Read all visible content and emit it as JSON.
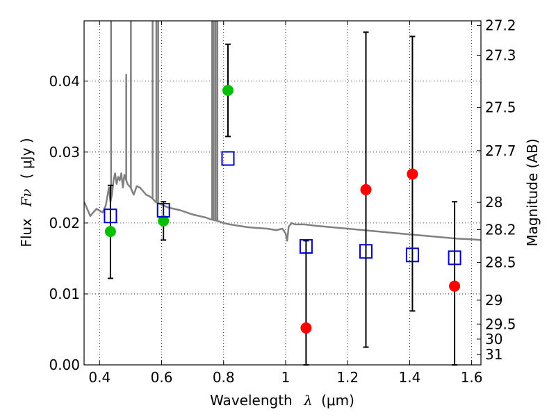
{
  "chart_data": {
    "type": "scatter",
    "title": "",
    "xlabel": "Wavelength",
    "xlabel_symbol": "λ",
    "xlabel_unit": "(μm)",
    "ylabel": "Flux",
    "ylabel_symbol": "Fν",
    "ylabel_unit": "( μJy )",
    "y2label": "Magnitude (AB)",
    "xlim": [
      0.35,
      1.63
    ],
    "ylim": [
      0.0,
      0.0485
    ],
    "grid": true,
    "x_ticks": [
      {
        "value": 0.4,
        "label": "0.4"
      },
      {
        "value": 0.6,
        "label": "0.6"
      },
      {
        "value": 0.8,
        "label": "0.8"
      },
      {
        "value": 1.0,
        "label": "1"
      },
      {
        "value": 1.2,
        "label": "1.2"
      },
      {
        "value": 1.4,
        "label": "1.4"
      },
      {
        "value": 1.6,
        "label": "1.6"
      }
    ],
    "y_ticks": [
      {
        "value": 0.0,
        "label": "0.00"
      },
      {
        "value": 0.01,
        "label": "0.01"
      },
      {
        "value": 0.02,
        "label": "0.02"
      },
      {
        "value": 0.03,
        "label": "0.03"
      },
      {
        "value": 0.04,
        "label": "0.04"
      }
    ],
    "y2_ticks": [
      {
        "value": 27.2,
        "label": "27.2"
      },
      {
        "value": 27.3,
        "label": "27.3"
      },
      {
        "value": 27.5,
        "label": "27.5"
      },
      {
        "value": 27.7,
        "label": "27.7"
      },
      {
        "value": 28.0,
        "label": "28"
      },
      {
        "value": 28.2,
        "label": "28.2"
      },
      {
        "value": 28.5,
        "label": "28.5"
      },
      {
        "value": 29.0,
        "label": "29"
      },
      {
        "value": 29.5,
        "label": "29.5"
      },
      {
        "value": 30.0,
        "label": "30"
      },
      {
        "value": 31.0,
        "label": "31"
      }
    ],
    "template_spectrum": {
      "color": "#808080",
      "x": [
        0.35,
        0.37,
        0.39,
        0.41,
        0.42,
        0.43,
        0.435,
        0.44,
        0.445,
        0.45,
        0.455,
        0.46,
        0.465,
        0.47,
        0.475,
        0.48,
        0.49,
        0.5,
        0.51,
        0.52,
        0.53,
        0.54,
        0.55,
        0.56,
        0.57,
        0.58,
        0.59,
        0.6,
        0.61,
        0.62,
        0.64,
        0.66,
        0.68,
        0.7,
        0.72,
        0.74,
        0.76,
        0.78,
        0.8,
        0.82,
        0.85,
        0.88,
        0.91,
        0.94,
        0.97,
        0.99,
        1.0,
        1.005,
        1.01,
        1.02,
        1.03,
        1.06,
        1.1,
        1.15,
        1.2,
        1.25,
        1.3,
        1.35,
        1.4,
        1.45,
        1.5,
        1.55,
        1.6,
        1.63
      ],
      "y": [
        0.023,
        0.021,
        0.022,
        0.0215,
        0.0225,
        0.025,
        0.023,
        0.024,
        0.026,
        0.027,
        0.0255,
        0.0265,
        0.026,
        0.027,
        0.025,
        0.0268,
        0.0255,
        0.025,
        0.024,
        0.0252,
        0.025,
        0.0245,
        0.024,
        0.0238,
        0.0235,
        0.023,
        0.0228,
        0.0226,
        0.0224,
        0.0222,
        0.022,
        0.0218,
        0.0215,
        0.0212,
        0.021,
        0.0208,
        0.0205,
        0.0203,
        0.02,
        0.0198,
        0.0196,
        0.0194,
        0.0193,
        0.0192,
        0.019,
        0.0192,
        0.0185,
        0.0175,
        0.0195,
        0.02,
        0.0198,
        0.0198,
        0.0196,
        0.0194,
        0.0192,
        0.019,
        0.0188,
        0.0186,
        0.0184,
        0.0182,
        0.018,
        0.0178,
        0.0177,
        0.0176
      ]
    },
    "emission_lines": [
      {
        "x": 0.437,
        "peak": 0.0485
      },
      {
        "x": 0.486,
        "peak": 0.041
      },
      {
        "x": 0.501,
        "peak": 0.0485
      },
      {
        "x": 0.571,
        "peak": 0.0485
      },
      {
        "x": 0.583,
        "peak": 0.0485
      },
      {
        "x": 0.589,
        "peak": 0.0485
      },
      {
        "x": 0.763,
        "peak": 0.0485
      },
      {
        "x": 0.768,
        "peak": 0.0485
      },
      {
        "x": 0.774,
        "peak": 0.0485
      },
      {
        "x": 0.78,
        "peak": 0.0485
      }
    ],
    "series": [
      {
        "marker": "circle",
        "color": "#00c000",
        "points": [
          {
            "x": 0.435,
            "y": 0.0188,
            "ylo": 0.0122,
            "yhi": 0.0253
          },
          {
            "x": 0.606,
            "y": 0.0203,
            "ylo": 0.0176,
            "yhi": 0.023
          },
          {
            "x": 0.814,
            "y": 0.0387,
            "ylo": 0.0322,
            "yhi": 0.0452
          }
        ]
      },
      {
        "marker": "circle",
        "color": "#ff0000",
        "points": [
          {
            "x": 1.066,
            "y": 0.0052,
            "ylo": 0.0,
            "yhi": 0.0175
          },
          {
            "x": 1.259,
            "y": 0.0247,
            "ylo": 0.0025,
            "yhi": 0.0469
          },
          {
            "x": 1.409,
            "y": 0.0269,
            "ylo": 0.0076,
            "yhi": 0.0463
          },
          {
            "x": 1.545,
            "y": 0.0111,
            "ylo": 0.0,
            "yhi": 0.023
          }
        ]
      },
      {
        "marker": "square",
        "color": "#0000cc",
        "points": [
          {
            "x": 0.435,
            "y": 0.021
          },
          {
            "x": 0.606,
            "y": 0.0218
          },
          {
            "x": 0.814,
            "y": 0.0291
          },
          {
            "x": 1.066,
            "y": 0.0167
          },
          {
            "x": 1.259,
            "y": 0.016
          },
          {
            "x": 1.409,
            "y": 0.0155
          },
          {
            "x": 1.545,
            "y": 0.0151
          }
        ]
      }
    ]
  }
}
